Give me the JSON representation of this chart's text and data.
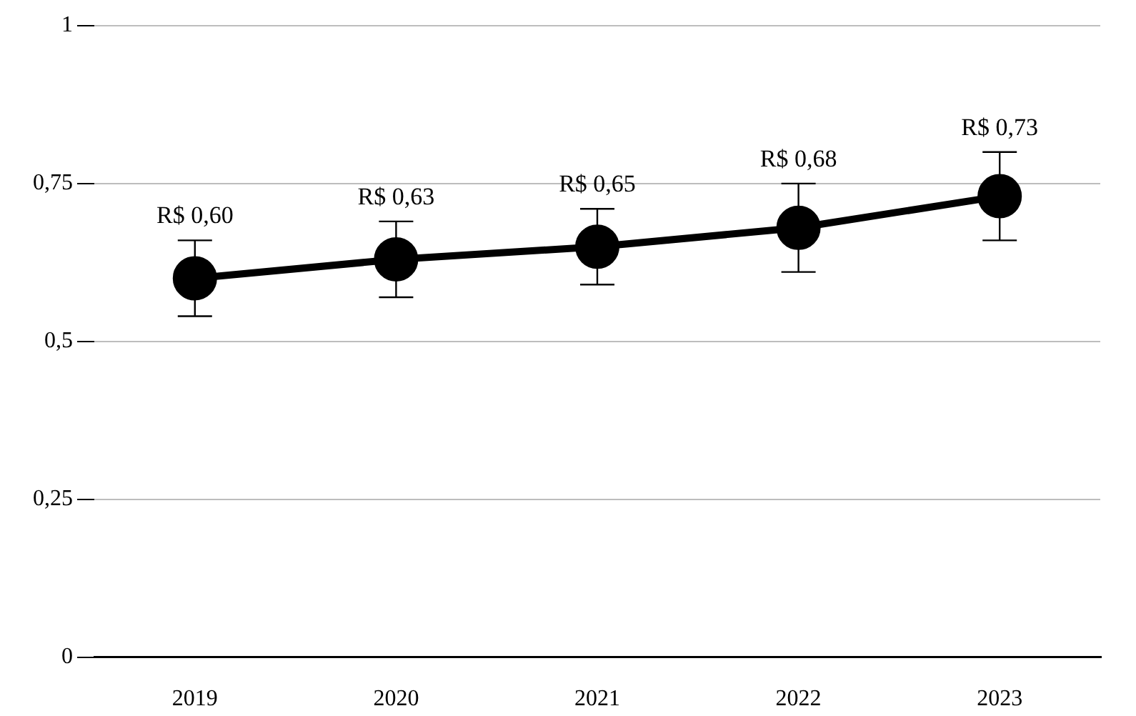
{
  "chart_data": {
    "type": "line",
    "categories": [
      "2019",
      "2020",
      "2021",
      "2022",
      "2023"
    ],
    "series": [
      {
        "color": "#000000",
        "values": [
          0.6,
          0.63,
          0.65,
          0.68,
          0.73
        ],
        "errors": [
          [
            0.54,
            0.66
          ],
          [
            0.57,
            0.69
          ],
          [
            0.59,
            0.71
          ],
          [
            0.61,
            0.75
          ],
          [
            0.66,
            0.8
          ]
        ],
        "value_labels": [
          "R$ 0,60",
          "R$ 0,63",
          "R$ 0,65",
          "R$ 0,68",
          "R$ 0,73"
        ]
      }
    ],
    "ylim": [
      0,
      1
    ],
    "yticks": [
      0,
      {
        "value": 0.25,
        "label": "0,25"
      },
      {
        "value": 0.5,
        "label": "0,5"
      },
      {
        "value": 0.75,
        "label": "0,75"
      },
      1
    ],
    "grid": "y",
    "legend": false,
    "marker": "circle",
    "line_style": "solid"
  }
}
